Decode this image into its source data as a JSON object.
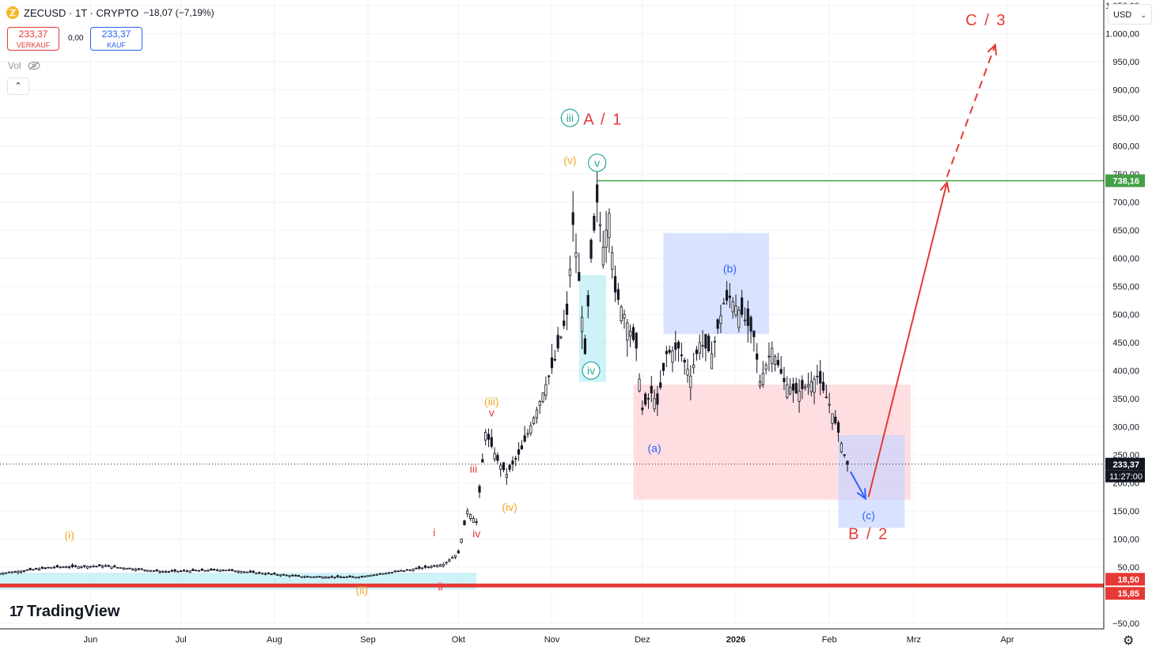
{
  "header": {
    "symbol": "ZECUSD · 1T · CRYPTO",
    "change": "−18,07 (−7,19%)",
    "logo_letter": "ℤ",
    "sell_price": "233,37",
    "sell_label": "VERKAUF",
    "spread": "0,00",
    "buy_price": "233,37",
    "buy_label": "KAUF",
    "vol_label": "Vol",
    "collapse_icon": "chevron-up-icon",
    "currency": "USD"
  },
  "brand": "TradingView",
  "colors": {
    "up": "#131722",
    "red": "#e53935",
    "green": "#43a047",
    "blue": "#2962ff",
    "orange": "#f5a623",
    "teal": "#26a69a",
    "cyan_box": "#b2ebf2",
    "blue_box": "#c5d3ff",
    "red_box": "#ffcdd2"
  },
  "chart_data": {
    "type": "candlestick",
    "title": "ZECUSD · 1T · CRYPTO",
    "x_ticks": [
      "Jun",
      "Jul",
      "Aug",
      "Sep",
      "Okt",
      "Nov",
      "Dez",
      "2026",
      "Feb",
      "Mrz",
      "Apr"
    ],
    "x_tick_dates": [
      "2025-06-01",
      "2025-07-01",
      "2025-08-01",
      "2025-09-01",
      "2025-10-01",
      "2025-11-01",
      "2025-12-01",
      "2026-01-01",
      "2026-02-01",
      "2026-03-01",
      "2026-04-01"
    ],
    "y_ticks": [
      "1.050,00",
      "1.000,00",
      "950,00",
      "900,00",
      "850,00",
      "800,00",
      "750,00",
      "700,00",
      "650,00",
      "600,00",
      "550,00",
      "500,00",
      "450,00",
      "400,00",
      "350,00",
      "300,00",
      "250,00",
      "200,00",
      "150,00",
      "100,00",
      "50,00",
      "−50,00"
    ],
    "y_tick_values": [
      1050,
      1000,
      950,
      900,
      850,
      800,
      750,
      700,
      650,
      600,
      550,
      500,
      450,
      400,
      350,
      300,
      250,
      200,
      150,
      100,
      50,
      -50
    ],
    "ylim": [
      -60,
      1060
    ],
    "last_price": {
      "value": 233.37,
      "label": "233,37",
      "countdown": "11:27:00"
    },
    "level_lines": [
      {
        "value": 738.16,
        "label": "738,16",
        "color": "#43a047"
      },
      {
        "value": 18.5,
        "label": "18,50",
        "color": "#e53935"
      },
      {
        "value": 15.85,
        "label": "15,85",
        "color": "#e53935"
      }
    ],
    "price_path": [
      [
        "2025-05-01",
        38
      ],
      [
        "2025-05-20",
        50
      ],
      [
        "2025-06-05",
        52
      ],
      [
        "2025-06-25",
        42
      ],
      [
        "2025-07-15",
        45
      ],
      [
        "2025-08-10",
        33
      ],
      [
        "2025-08-28",
        32
      ],
      [
        "2025-09-15",
        45
      ],
      [
        "2025-09-26",
        55
      ],
      [
        "2025-10-01",
        75
      ],
      [
        "2025-10-04",
        150
      ],
      [
        "2025-10-07",
        130
      ],
      [
        "2025-10-10",
        290
      ],
      [
        "2025-10-14",
        240
      ],
      [
        "2025-10-17",
        215
      ],
      [
        "2025-10-22",
        260
      ],
      [
        "2025-10-27",
        330
      ],
      [
        "2025-11-02",
        420
      ],
      [
        "2025-11-06",
        500
      ],
      [
        "2025-11-08",
        660
      ],
      [
        "2025-11-10",
        560
      ],
      [
        "2025-11-12",
        430
      ],
      [
        "2025-11-14",
        600
      ],
      [
        "2025-11-16",
        700
      ],
      [
        "2025-11-18",
        620
      ],
      [
        "2025-11-20",
        680
      ],
      [
        "2025-11-22",
        540
      ],
      [
        "2025-11-25",
        500
      ],
      [
        "2025-11-29",
        440
      ],
      [
        "2025-12-01",
        330
      ],
      [
        "2025-12-04",
        360
      ],
      [
        "2025-12-06",
        340
      ],
      [
        "2025-12-09",
        430
      ],
      [
        "2025-12-13",
        440
      ],
      [
        "2025-12-17",
        390
      ],
      [
        "2025-12-20",
        450
      ],
      [
        "2025-12-24",
        430
      ],
      [
        "2025-12-28",
        520
      ],
      [
        "2025-12-30",
        530
      ],
      [
        "2026-01-03",
        500
      ],
      [
        "2026-01-07",
        460
      ],
      [
        "2026-01-09",
        380
      ],
      [
        "2026-01-13",
        440
      ],
      [
        "2026-01-17",
        380
      ],
      [
        "2026-01-21",
        360
      ],
      [
        "2026-01-25",
        375
      ],
      [
        "2026-01-28",
        390
      ],
      [
        "2026-02-01",
        340
      ],
      [
        "2026-02-04",
        290
      ],
      [
        "2026-02-06",
        250
      ],
      [
        "2026-02-07",
        233
      ]
    ],
    "zones": [
      {
        "from": "2025-05-01",
        "to": "2025-10-07",
        "low": 10,
        "high": 40,
        "color": "#b2ebf2"
      },
      {
        "from": "2025-11-10",
        "to": "2025-11-19",
        "low": 380,
        "high": 570,
        "color": "#b2ebf2"
      },
      {
        "from": "2025-12-08",
        "to": "2026-01-12",
        "low": 465,
        "high": 645,
        "color": "#c5d3ff"
      },
      {
        "from": "2025-11-28",
        "to": "2026-02-28",
        "low": 170,
        "high": 375,
        "color": "#ffcdd2"
      },
      {
        "from": "2026-02-04",
        "to": "2026-02-26",
        "low": 120,
        "high": 285,
        "color": "#c5d3ff"
      }
    ],
    "arrows": [
      {
        "from": [
          "2026-02-08",
          220
        ],
        "to": [
          "2026-02-13",
          172
        ],
        "color": "#2962ff",
        "dashed": false
      },
      {
        "from": [
          "2026-02-14",
          175
        ],
        "to": [
          "2026-03-12",
          735
        ],
        "color": "#e53935",
        "dashed": false
      },
      {
        "from": [
          "2026-03-12",
          745
        ],
        "to": [
          "2026-03-28",
          980
        ],
        "color": "#e53935",
        "dashed": true
      }
    ],
    "annotations": [
      {
        "text": "(i)",
        "date": "2025-05-25",
        "value": 100,
        "color": "#f5a623"
      },
      {
        "text": "(ii)",
        "date": "2025-08-30",
        "value": 2,
        "color": "#f5a623"
      },
      {
        "text": "i",
        "date": "2025-09-23",
        "value": 105,
        "color": "#e53935"
      },
      {
        "text": "ii",
        "date": "2025-09-25",
        "value": 8,
        "color": "#e53935"
      },
      {
        "text": "iii",
        "date": "2025-10-06",
        "value": 218,
        "color": "#e53935"
      },
      {
        "text": "iv",
        "date": "2025-10-07",
        "value": 103,
        "color": "#e53935"
      },
      {
        "text": "v",
        "date": "2025-10-12",
        "value": 318,
        "color": "#e53935"
      },
      {
        "text": "(iii)",
        "date": "2025-10-12",
        "value": 338,
        "color": "#f5a623"
      },
      {
        "text": "(iv)",
        "date": "2025-10-18",
        "value": 150,
        "color": "#f5a623"
      },
      {
        "text": "(v)",
        "date": "2025-11-07",
        "value": 768,
        "color": "#f5a623"
      },
      {
        "text": "iii",
        "date": "2025-11-07",
        "value": 843,
        "color": "#26a69a",
        "circled": true
      },
      {
        "text": "A / 1",
        "date": "2025-11-18",
        "value": 838,
        "color": "#e53935",
        "size": 20
      },
      {
        "text": "v",
        "date": "2025-11-16",
        "value": 763,
        "color": "#26a69a",
        "circled": true
      },
      {
        "text": "iv",
        "date": "2025-11-14",
        "value": 393,
        "color": "#26a69a",
        "circled": true
      },
      {
        "text": "(b)",
        "date": "2025-12-30",
        "value": 575,
        "color": "#2962ff"
      },
      {
        "text": "(a)",
        "date": "2025-12-05",
        "value": 255,
        "color": "#2962ff"
      },
      {
        "text": "(c)",
        "date": "2026-02-14",
        "value": 135,
        "color": "#2962ff"
      },
      {
        "text": "B / 2",
        "date": "2026-02-14",
        "value": 100,
        "color": "#e53935",
        "size": 20
      },
      {
        "text": "C / 3",
        "date": "2026-03-25",
        "value": 1015,
        "color": "#e53935",
        "size": 20
      }
    ]
  }
}
